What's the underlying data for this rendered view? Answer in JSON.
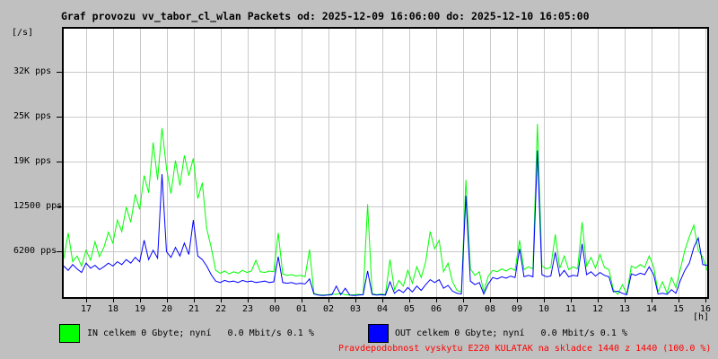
{
  "window": {
    "background_color": "#c0c0c0"
  },
  "title": "Graf provozu vv_tabor_cl_wlan Packets od: 2025-12-09 16:06:00 do: 2025-12-10 16:05:00",
  "legend": {
    "in_label": "IN celkem 0 Gbyte; nyní   0.0 Mbit/s 0.1 %",
    "in_color": "#00ff00",
    "out_label": "OUT celkem 0 Gbyte; nyní   0.0 Mbit/s 0.1 %",
    "out_color": "#0000ff"
  },
  "footer": {
    "text": "Pravdepodobnost vyskytu E220 KULATAK na skladce 1440 z 1440 (100.0 %)",
    "color": "#ff0000"
  },
  "chart_data": {
    "type": "line",
    "title": "Graf provozu vv_tabor_cl_wlan Packets",
    "time_range": {
      "from": "2025-12-09 16:06:00",
      "to": "2025-12-10 16:05:00"
    },
    "y_unit": "[/s]",
    "x_unit": "[h]",
    "grid": true,
    "grid_color": "#c9c9c9",
    "y_ticks": [
      {
        "label": "6200 pps",
        "value": 6250
      },
      {
        "label": "12500 pps",
        "value": 12500
      },
      {
        "label": "19K pps",
        "value": 18750
      },
      {
        "label": "25K pps",
        "value": 25000
      },
      {
        "label": "32K pps",
        "value": 31250
      }
    ],
    "y_range": [
      0,
      37250
    ],
    "x_tick_labels": [
      "17",
      "18",
      "19",
      "20",
      "21",
      "22",
      "23",
      "00",
      "01",
      "02",
      "03",
      "04",
      "05",
      "06",
      "07",
      "08",
      "09",
      "10",
      "11",
      "12",
      "13",
      "14",
      "15",
      "16"
    ],
    "x_start_clock": "16:06",
    "sample_step_minutes": 10,
    "series": [
      {
        "name": "IN",
        "unit": "pps",
        "color": "#00ff00",
        "values": [
          5200,
          8800,
          4800,
          5600,
          4200,
          6400,
          5000,
          7600,
          5500,
          6800,
          8900,
          7400,
          10600,
          9000,
          12400,
          10300,
          14200,
          12100,
          16800,
          14400,
          21400,
          16200,
          23400,
          17800,
          14300,
          18900,
          15400,
          19600,
          16800,
          19200,
          13600,
          15800,
          9400,
          6800,
          3600,
          3200,
          3500,
          3100,
          3400,
          3200,
          3600,
          3300,
          3500,
          5000,
          3400,
          3300,
          3500,
          3400,
          8800,
          3100,
          2900,
          3000,
          2800,
          2900,
          2700,
          6500,
          400,
          200,
          150,
          200,
          300,
          250,
          400,
          200,
          150,
          200,
          250,
          200,
          12800,
          400,
          200,
          300,
          250,
          5100,
          900,
          2200,
          1400,
          3600,
          1800,
          4100,
          2600,
          4800,
          9000,
          6600,
          7800,
          3400,
          4600,
          2000,
          800,
          600,
          16200,
          3800,
          2900,
          3400,
          600,
          2800,
          3600,
          3400,
          3800,
          3500,
          3900,
          3600,
          7800,
          3700,
          4100,
          3800,
          24000,
          4200,
          3800,
          4000,
          8600,
          3900,
          5600,
          3700,
          4100,
          3800,
          10300,
          4200,
          5400,
          3900,
          5800,
          4000,
          3700,
          900,
          250,
          1600,
          300,
          4200,
          3900,
          4400,
          4000,
          5600,
          4100,
          600,
          2000,
          400,
          2600,
          1200,
          3800,
          6400,
          8300,
          9900,
          6400,
          5400,
          3600
        ]
      },
      {
        "name": "OUT",
        "unit": "pps",
        "color": "#0000ff",
        "values": [
          4200,
          3600,
          4400,
          3800,
          3300,
          4600,
          3900,
          4300,
          3700,
          4100,
          4600,
          4200,
          4800,
          4400,
          5100,
          4600,
          5400,
          4800,
          7800,
          5100,
          6400,
          5300,
          17000,
          6200,
          5400,
          6800,
          5600,
          7400,
          5800,
          10600,
          5600,
          5100,
          4200,
          3000,
          2100,
          1900,
          2200,
          2000,
          2100,
          1900,
          2200,
          2000,
          2100,
          1900,
          2000,
          2100,
          1900,
          2000,
          5500,
          1900,
          1800,
          1900,
          1700,
          1800,
          1700,
          2400,
          300,
          150,
          100,
          150,
          200,
          1400,
          200,
          1100,
          150,
          100,
          150,
          200,
          3500,
          250,
          150,
          200,
          150,
          2000,
          400,
          900,
          500,
          1200,
          600,
          1400,
          800,
          1600,
          2300,
          1900,
          2300,
          1100,
          1500,
          700,
          400,
          300,
          14000,
          2100,
          1600,
          1900,
          300,
          1700,
          2600,
          2400,
          2700,
          2500,
          2800,
          2600,
          6600,
          2700,
          2900,
          2700,
          20300,
          3000,
          2700,
          2800,
          6100,
          2800,
          3600,
          2700,
          2900,
          2800,
          7300,
          3000,
          3400,
          2800,
          3300,
          2900,
          2700,
          600,
          700,
          400,
          200,
          3100,
          2900,
          3200,
          3000,
          4100,
          3000,
          300,
          400,
          250,
          900,
          400,
          2200,
          3600,
          4600,
          6800,
          8100,
          4400,
          4300
        ]
      }
    ]
  }
}
